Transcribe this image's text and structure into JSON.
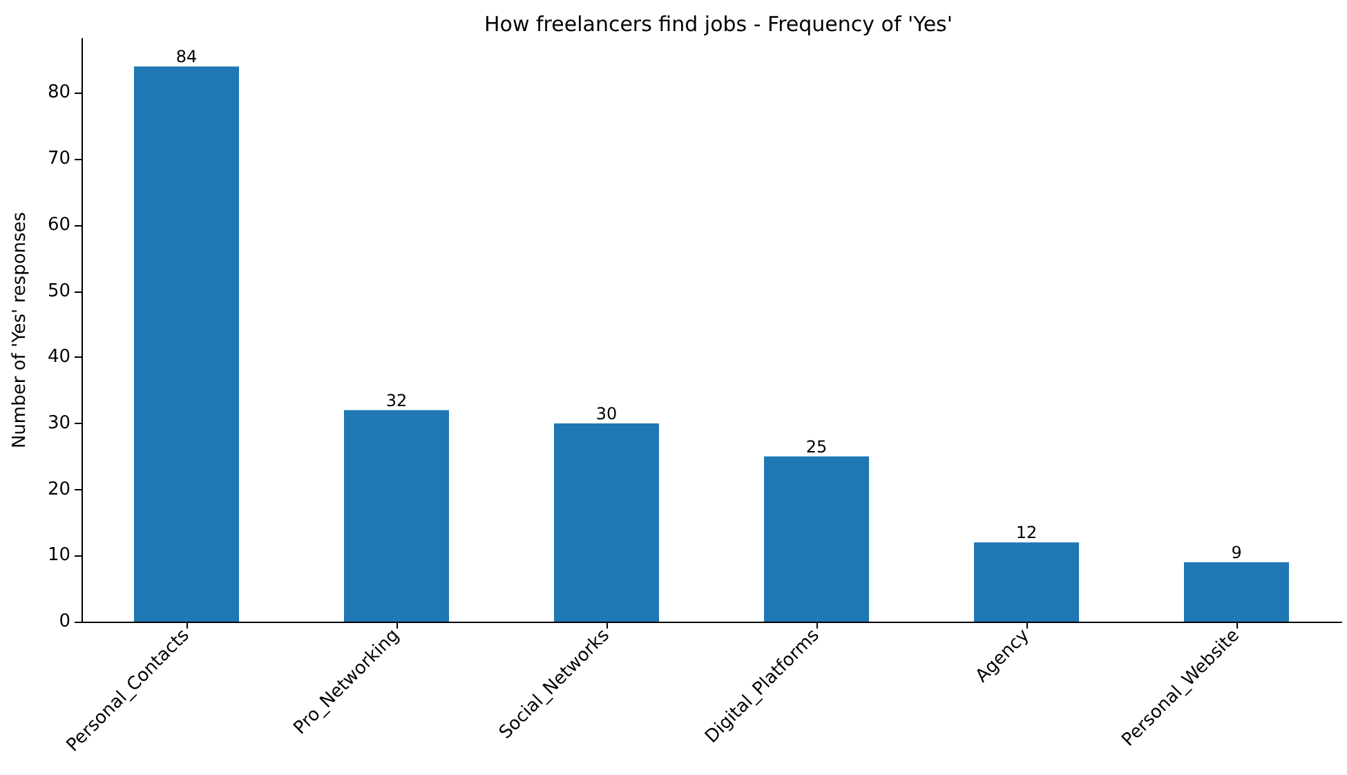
{
  "chart_data": {
    "type": "bar",
    "title": "How freelancers find jobs - Frequency of 'Yes'",
    "ylabel": "Number of 'Yes' responses",
    "categories": [
      "Personal_Contacts",
      "Pro_Networking",
      "Social_Networks",
      "Digital_Platforms",
      "Agency",
      "Personal_Website"
    ],
    "values": [
      84,
      32,
      30,
      25,
      12,
      9
    ],
    "color": "#1f77b4",
    "ylim": [
      0,
      88.2
    ],
    "yticks": [
      0,
      10,
      20,
      30,
      40,
      50,
      60,
      70,
      80
    ],
    "grid": false,
    "data_labels": true
  }
}
